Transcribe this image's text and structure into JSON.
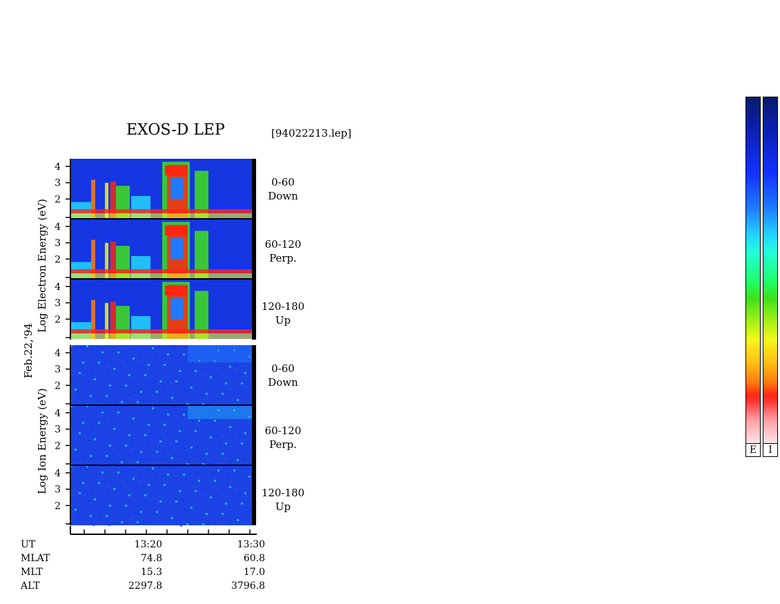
{
  "title": "EXOS-D LEP",
  "file_label": "[94022213.lep]",
  "date_label": "Feb.22,'94",
  "electron_axis_label": "Log   Electron   Energy  (eV)",
  "ion_axis_label": "Log   Ion   Energy  (eV)",
  "panel_labels": [
    {
      "line1": "0-60",
      "line2": "Down"
    },
    {
      "line1": "60-120",
      "line2": "Perp."
    },
    {
      "line1": "120-180",
      "line2": "Up"
    },
    {
      "line1": "0-60",
      "line2": "Down"
    },
    {
      "line1": "60-120",
      "line2": "Perp."
    },
    {
      "line1": "120-180",
      "line2": "Up"
    }
  ],
  "colorbar_labels": [
    "E",
    "I"
  ],
  "info_rows": [
    {
      "name": "UT",
      "v1": "13:20",
      "v2": "13:30"
    },
    {
      "name": "MLAT",
      "v1": "74.8",
      "v2": "60.8"
    },
    {
      "name": "MLT",
      "v1": "15.3",
      "v2": "17.0"
    },
    {
      "name": "ALT",
      "v1": "2297.8",
      "v2": "3796.8"
    }
  ],
  "chart_data": {
    "type": "heatmap",
    "title": "EXOS-D LEP",
    "panels": [
      {
        "species": "electron",
        "pitch_angle": "0-60 Down"
      },
      {
        "species": "electron",
        "pitch_angle": "60-120 Perp."
      },
      {
        "species": "electron",
        "pitch_angle": "120-180 Up"
      },
      {
        "species": "ion",
        "pitch_angle": "0-60 Down"
      },
      {
        "species": "ion",
        "pitch_angle": "60-120 Perp."
      },
      {
        "species": "ion",
        "pitch_angle": "120-180 Up"
      }
    ],
    "y_tick_labels": [
      "2",
      "3",
      "4"
    ],
    "x_tick_labels": [
      "13:20",
      "13:30"
    ],
    "ylim": [
      1,
      4
    ],
    "colorbar": [
      "E",
      "I"
    ]
  }
}
